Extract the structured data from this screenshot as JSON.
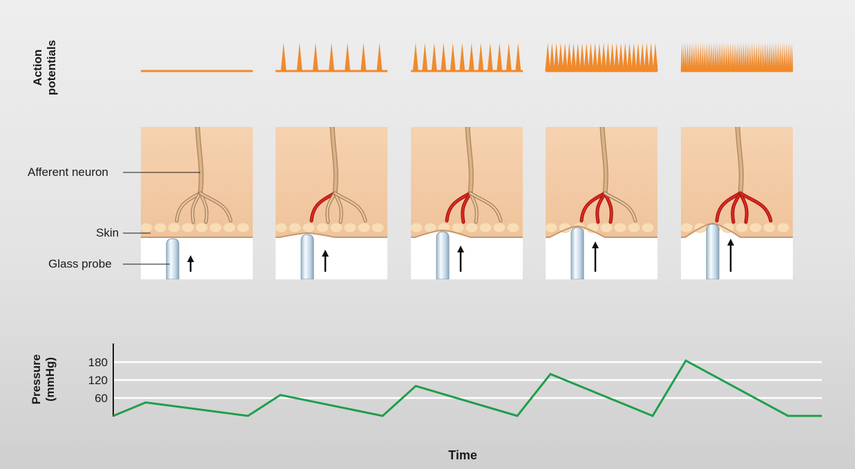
{
  "labels": {
    "action_potentials": [
      "Action",
      "potentials"
    ],
    "afferent_neuron": "Afferent neuron",
    "skin": "Skin",
    "glass_probe": "Glass probe",
    "pressure": [
      "Pressure",
      "(mmHg)"
    ],
    "time": "Time"
  },
  "colors": {
    "action_potential": "#f08a2c",
    "pressure_trace": "#1e9e4a",
    "skin": "#f3c9a2",
    "neuron": "#d9b48a",
    "activated_branch": "#e02a20",
    "probe": "#d4e6f2",
    "axis": "#1a1a1a",
    "gridline": "#ffffff"
  },
  "panels": [
    {
      "spike_count": 0,
      "activated_branches": 0,
      "arrow_length": "short",
      "skin_indent": "none"
    },
    {
      "spike_count": 7,
      "activated_branches": 1,
      "arrow_length": "short",
      "skin_indent": "slight"
    },
    {
      "spike_count": 12,
      "activated_branches": 2,
      "arrow_length": "medium",
      "skin_indent": "moderate"
    },
    {
      "spike_count": 26,
      "activated_branches": 3,
      "arrow_length": "long",
      "skin_indent": "strong"
    },
    {
      "spike_count": 60,
      "activated_branches": 4,
      "arrow_length": "longest",
      "skin_indent": "strongest"
    }
  ],
  "chart_data": {
    "type": "line",
    "title": "",
    "xlabel": "Time",
    "ylabel": "Pressure (mmHg)",
    "y_ticks": [
      60,
      120,
      180
    ],
    "ylim": [
      0,
      200
    ],
    "grid": true,
    "series": [
      {
        "values": [
          0,
          45,
          45,
          0,
          0,
          70,
          70,
          0,
          0,
          100,
          100,
          0,
          0,
          140,
          140,
          0,
          0,
          185,
          185,
          0
        ]
      }
    ],
    "x": [
      0,
      1,
      2,
      3,
      4,
      5,
      6,
      7,
      8,
      9,
      10,
      11,
      12,
      13,
      14,
      15,
      16,
      17,
      18,
      19
    ]
  }
}
